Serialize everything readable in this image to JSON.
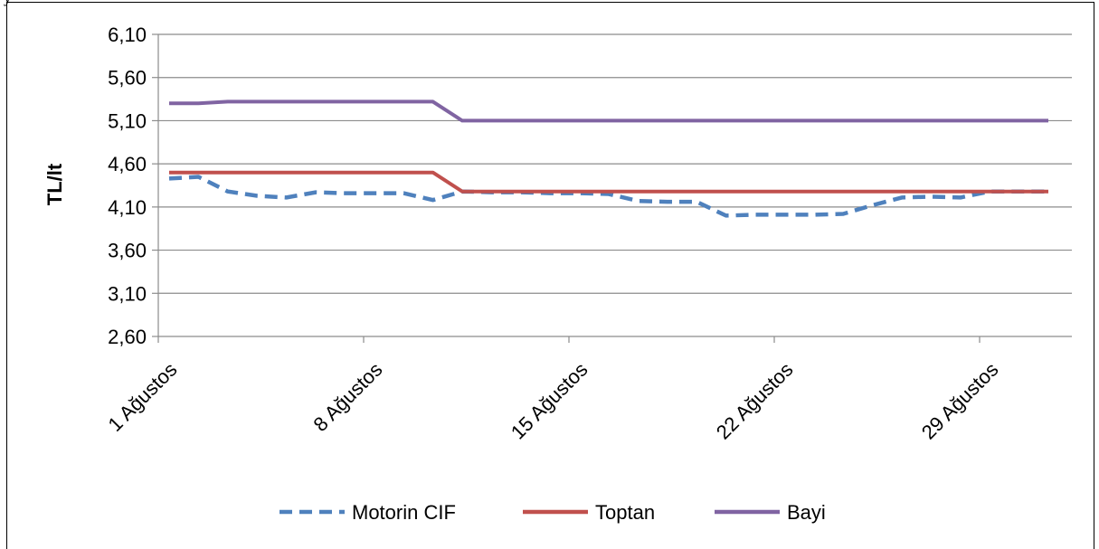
{
  "header": {
    "caption": "y"
  },
  "chart_data": {
    "type": "line",
    "title": "",
    "xlabel": "",
    "ylabel": "TL/lt",
    "ylim": [
      2.6,
      6.1
    ],
    "y_ticks": [
      "6,10",
      "5,60",
      "5,10",
      "4,60",
      "4,10",
      "3,60",
      "3,10",
      "2,60"
    ],
    "y_tick_values": [
      6.1,
      5.6,
      5.1,
      4.6,
      4.1,
      3.6,
      3.1,
      2.6
    ],
    "x_ticks": [
      "1 Ağustos",
      "8 Ağustos",
      "15 Ağustos",
      "22 Ağustos",
      "29 Ağustos"
    ],
    "x_tick_days": [
      1,
      8,
      15,
      22,
      29
    ],
    "x": [
      1,
      2,
      3,
      4,
      5,
      6,
      7,
      8,
      9,
      10,
      11,
      12,
      13,
      14,
      15,
      16,
      17,
      18,
      19,
      20,
      21,
      22,
      23,
      24,
      25,
      26,
      27,
      28,
      29,
      30,
      31
    ],
    "grid": true,
    "legend": "bottom",
    "series": [
      {
        "name": "Motorin CIF",
        "color": "#4f81bd",
        "style": "dashed",
        "values": [
          4.43,
          4.45,
          4.28,
          4.23,
          4.21,
          4.27,
          4.26,
          4.26,
          4.26,
          4.18,
          4.28,
          4.27,
          4.27,
          4.26,
          4.26,
          4.25,
          4.17,
          4.16,
          4.16,
          4.0,
          4.01,
          4.01,
          4.01,
          4.02,
          4.12,
          4.21,
          4.22,
          4.21,
          4.28,
          4.28,
          4.28
        ]
      },
      {
        "name": "Toptan",
        "color": "#c0504d",
        "style": "solid",
        "values": [
          4.5,
          4.5,
          4.5,
          4.5,
          4.5,
          4.5,
          4.5,
          4.5,
          4.5,
          4.5,
          4.28,
          4.28,
          4.28,
          4.28,
          4.28,
          4.28,
          4.28,
          4.28,
          4.28,
          4.28,
          4.28,
          4.28,
          4.28,
          4.28,
          4.28,
          4.28,
          4.28,
          4.28,
          4.28,
          4.28,
          4.28
        ]
      },
      {
        "name": "Bayi",
        "color": "#8064a2",
        "style": "solid",
        "values": [
          5.3,
          5.3,
          5.32,
          5.32,
          5.32,
          5.32,
          5.32,
          5.32,
          5.32,
          5.32,
          5.1,
          5.1,
          5.1,
          5.1,
          5.1,
          5.1,
          5.1,
          5.1,
          5.1,
          5.1,
          5.1,
          5.1,
          5.1,
          5.1,
          5.1,
          5.1,
          5.1,
          5.1,
          5.1,
          5.1,
          5.1
        ]
      }
    ]
  }
}
